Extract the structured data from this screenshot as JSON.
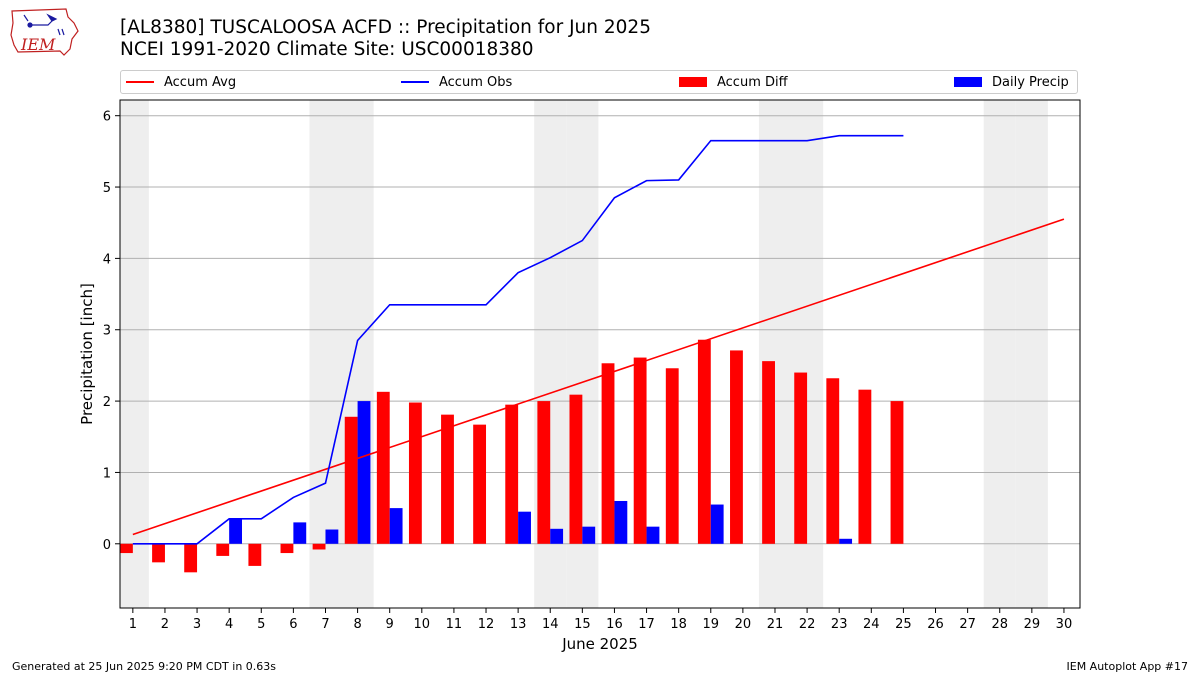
{
  "header": {
    "logo_text": "IEM",
    "title_line1": "[AL8380] TUSCALOOSA ACFD :: Precipitation for Jun 2025",
    "title_line2": "NCEI 1991-2020 Climate Site: USC00018380"
  },
  "legend": {
    "accum_avg": "Accum Avg",
    "accum_obs": "Accum Obs",
    "accum_diff": "Accum Diff",
    "daily_precip": "Daily Precip"
  },
  "colors": {
    "accum_avg": "#ff0000",
    "accum_obs": "#0000ff",
    "accum_diff": "#ff0000",
    "daily_precip": "#0000ff",
    "weekend_shade": "#eeeeee",
    "grid": "#b0b0b0"
  },
  "footer": {
    "generated": "Generated at 25 Jun 2025 9:20 PM CDT in 0.63s",
    "app": "IEM Autoplot App #17"
  },
  "chart_data": {
    "type": "bar",
    "xlabel": "June 2025",
    "ylabel": "Precipitation [inch]",
    "xlim": [
      0.6,
      30.5
    ],
    "ylim": [
      -0.9,
      6.22
    ],
    "yticks": [
      0,
      1,
      2,
      3,
      4,
      5,
      6
    ],
    "days": [
      1,
      2,
      3,
      4,
      5,
      6,
      7,
      8,
      9,
      10,
      11,
      12,
      13,
      14,
      15,
      16,
      17,
      18,
      19,
      20,
      21,
      22,
      23,
      24,
      25,
      26,
      27,
      28,
      29,
      30
    ],
    "weekend_days": [
      1,
      7,
      8,
      14,
      15,
      21,
      22,
      28,
      29
    ],
    "grid": "horizontal",
    "legend_position": "top",
    "series": [
      {
        "name": "Accum Avg",
        "kind": "line",
        "x": [
          1,
          30
        ],
        "values": [
          0.13,
          4.55
        ]
      },
      {
        "name": "Accum Obs",
        "kind": "line",
        "x": [
          1,
          2,
          3,
          4,
          5,
          6,
          7,
          8,
          9,
          10,
          11,
          12,
          13,
          14,
          15,
          16,
          17,
          18,
          19,
          20,
          21,
          22,
          23,
          24,
          25
        ],
        "values": [
          0.0,
          0.0,
          0.0,
          0.35,
          0.35,
          0.65,
          0.85,
          2.85,
          3.35,
          3.35,
          3.35,
          3.35,
          3.8,
          4.01,
          4.25,
          4.85,
          5.09,
          5.1,
          5.65,
          5.65,
          5.65,
          5.65,
          5.72,
          5.72,
          5.72
        ]
      },
      {
        "name": "Accum Diff",
        "kind": "bar",
        "x": [
          1,
          2,
          3,
          4,
          5,
          6,
          7,
          8,
          9,
          10,
          11,
          12,
          13,
          14,
          15,
          16,
          17,
          18,
          19,
          20,
          21,
          22,
          23,
          24,
          25
        ],
        "values": [
          -0.13,
          -0.26,
          -0.4,
          -0.17,
          -0.31,
          -0.13,
          -0.08,
          1.78,
          2.13,
          1.98,
          1.81,
          1.67,
          1.95,
          2.0,
          2.09,
          2.53,
          2.61,
          2.46,
          2.86,
          2.71,
          2.56,
          2.4,
          2.32,
          2.16,
          2.0
        ]
      },
      {
        "name": "Daily Precip",
        "kind": "bar",
        "x": [
          4,
          6,
          7,
          8,
          9,
          13,
          14,
          15,
          16,
          17,
          19,
          23
        ],
        "values": [
          0.35,
          0.3,
          0.2,
          2.0,
          0.5,
          0.45,
          0.21,
          0.24,
          0.6,
          0.24,
          0.55,
          0.07
        ]
      }
    ]
  }
}
